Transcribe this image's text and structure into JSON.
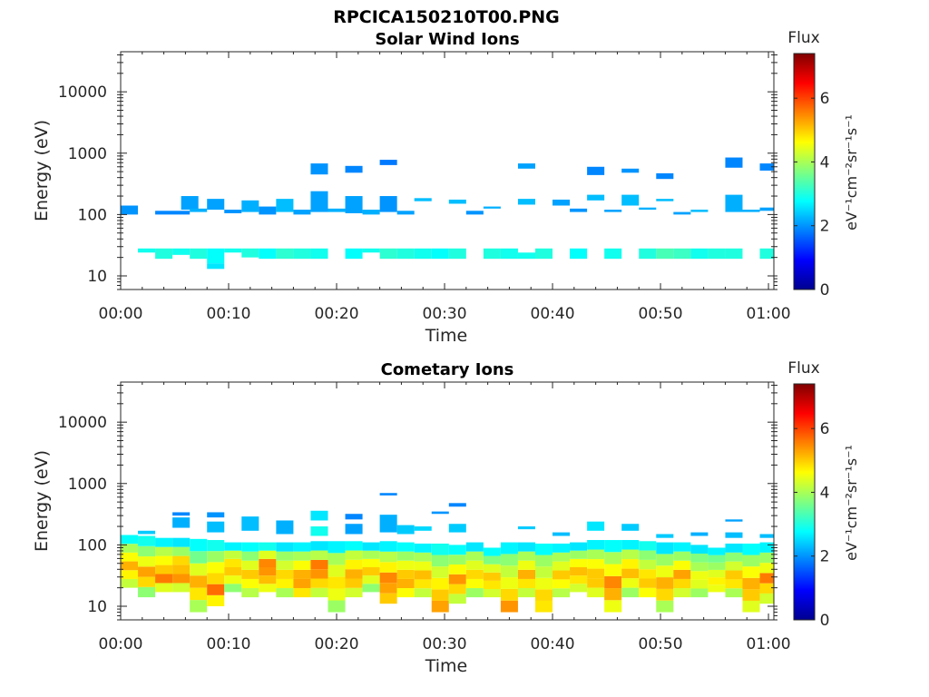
{
  "figure": {
    "title": "RPCICA150210T00.PNG"
  },
  "chart_data": [
    {
      "type": "heatmap",
      "title": "Solar Wind Ions",
      "xlabel": "Time",
      "ylabel": "Energy (eV)",
      "x_tick_labels": [
        "00:00",
        "00:10",
        "00:20",
        "00:30",
        "00:40",
        "00:50",
        "01:00"
      ],
      "y_tick_labels": [
        "10",
        "100",
        "1000",
        "10000"
      ],
      "y_scale": "log",
      "ylim": [
        6,
        45000
      ],
      "xlim_minutes": [
        0,
        60.5
      ],
      "colorbar": {
        "label": "Flux",
        "unit": "eV⁻¹cm⁻²sr⁻¹s⁻¹",
        "ticks": [
          "0",
          "2",
          "4",
          "6"
        ],
        "range": [
          0,
          7.4
        ],
        "colormap": "jet"
      },
      "grid": false,
      "cells": [
        [
          0,
          1.6,
          100,
          140,
          2.0
        ],
        [
          3.2,
          6.4,
          100,
          115,
          1.9
        ],
        [
          5.6,
          7.2,
          120,
          200,
          2.1
        ],
        [
          6.4,
          8,
          110,
          125,
          2.2
        ],
        [
          8,
          9.6,
          120,
          180,
          2.1
        ],
        [
          9.6,
          11.2,
          105,
          120,
          2.0
        ],
        [
          11.2,
          12.8,
          110,
          170,
          2.2
        ],
        [
          12.8,
          14.4,
          100,
          135,
          2.0
        ],
        [
          14.4,
          16,
          110,
          180,
          2.3
        ],
        [
          16,
          17.6,
          100,
          120,
          2.1
        ],
        [
          17.6,
          19.2,
          110,
          240,
          2.1
        ],
        [
          19.2,
          20.8,
          110,
          125,
          2.2
        ],
        [
          20.8,
          22.4,
          105,
          200,
          2.1
        ],
        [
          22.4,
          24,
          100,
          120,
          2.2
        ],
        [
          24,
          25.6,
          110,
          200,
          2.0
        ],
        [
          25.6,
          27.2,
          100,
          115,
          2.1
        ],
        [
          27.2,
          28.8,
          165,
          185,
          2.3
        ],
        [
          30.4,
          32,
          150,
          175,
          2.3
        ],
        [
          32,
          33.6,
          100,
          115,
          2.0
        ],
        [
          33.6,
          35.2,
          125,
          135,
          2.2
        ],
        [
          36.8,
          38.4,
          145,
          180,
          2.3
        ],
        [
          40,
          41.6,
          140,
          175,
          2.1
        ],
        [
          41.6,
          43.2,
          110,
          125,
          2.0
        ],
        [
          43.2,
          44.8,
          170,
          210,
          2.3
        ],
        [
          44.8,
          46.4,
          110,
          120,
          2.1
        ],
        [
          46.4,
          48,
          140,
          210,
          2.3
        ],
        [
          48,
          49.6,
          120,
          130,
          2.2
        ],
        [
          49.6,
          51.2,
          165,
          180,
          2.3
        ],
        [
          51.2,
          52.8,
          100,
          110,
          2.1
        ],
        [
          52.8,
          54.4,
          110,
          120,
          2.3
        ],
        [
          56,
          57.6,
          110,
          210,
          2.2
        ],
        [
          57.6,
          59.2,
          110,
          120,
          2.2
        ],
        [
          59.2,
          60.5,
          115,
          130,
          2.1
        ],
        [
          17.6,
          19.2,
          450,
          680,
          2.0
        ],
        [
          20.8,
          22.4,
          480,
          620,
          1.9
        ],
        [
          24,
          25.6,
          640,
          780,
          1.8
        ],
        [
          36.8,
          38.4,
          560,
          680,
          2.1
        ],
        [
          43.2,
          44.8,
          440,
          600,
          1.9
        ],
        [
          46.4,
          48,
          480,
          560,
          2.0
        ],
        [
          49.6,
          51.2,
          380,
          470,
          1.9
        ],
        [
          56,
          57.6,
          580,
          850,
          1.9
        ],
        [
          59.2,
          60.5,
          520,
          680,
          1.9
        ],
        [
          1.6,
          3.2,
          24,
          28,
          2.9
        ],
        [
          3.2,
          4.8,
          19,
          28,
          3.0
        ],
        [
          4.8,
          6.4,
          22,
          28,
          2.9
        ],
        [
          6.4,
          8,
          19,
          28,
          3.0
        ],
        [
          8,
          9.6,
          16,
          28,
          2.8
        ],
        [
          9.6,
          11.2,
          24,
          28,
          2.9
        ],
        [
          11.2,
          12.8,
          20,
          28,
          3.0
        ],
        [
          12.8,
          14.4,
          19,
          28,
          2.8
        ],
        [
          14.4,
          16,
          19,
          28,
          3.1
        ],
        [
          16,
          17.6,
          19,
          28,
          3.0
        ],
        [
          17.6,
          19.2,
          19,
          28,
          2.9
        ],
        [
          20.8,
          22.4,
          19,
          28,
          2.8
        ],
        [
          22.4,
          24,
          24,
          28,
          2.9
        ],
        [
          24,
          25.6,
          19,
          28,
          3.1
        ],
        [
          25.6,
          27.2,
          19,
          28,
          3.0
        ],
        [
          27.2,
          28.8,
          19,
          28,
          2.9
        ],
        [
          28.8,
          30.4,
          19,
          28,
          2.8
        ],
        [
          30.4,
          32,
          19,
          28,
          3.0
        ],
        [
          33.6,
          35.2,
          19,
          28,
          3.0
        ],
        [
          35.2,
          36.8,
          19,
          28,
          2.9
        ],
        [
          36.8,
          38.4,
          19,
          24,
          2.9
        ],
        [
          38.4,
          40,
          19,
          28,
          3.0
        ],
        [
          41.6,
          43.2,
          19,
          28,
          2.8
        ],
        [
          44.8,
          46.4,
          19,
          28,
          2.9
        ],
        [
          48,
          49.6,
          19,
          28,
          3.0
        ],
        [
          49.6,
          51.2,
          19,
          28,
          3.3
        ],
        [
          51.2,
          52.8,
          19,
          28,
          3.2
        ],
        [
          52.8,
          54.4,
          19,
          28,
          2.9
        ],
        [
          54.4,
          56,
          19,
          28,
          3.0
        ],
        [
          56,
          57.6,
          19,
          28,
          3.0
        ],
        [
          59.2,
          60.5,
          19,
          28,
          3.0
        ],
        [
          8,
          9.6,
          13,
          16,
          2.6
        ]
      ]
    },
    {
      "type": "heatmap",
      "title": "Cometary Ions",
      "xlabel": "Time",
      "ylabel": "Energy (eV)",
      "x_tick_labels": [
        "00:00",
        "00:10",
        "00:20",
        "00:30",
        "00:40",
        "00:50",
        "01:00"
      ],
      "y_tick_labels": [
        "10",
        "100",
        "1000",
        "10000"
      ],
      "y_scale": "log",
      "ylim": [
        6,
        45000
      ],
      "xlim_minutes": [
        0,
        60.5
      ],
      "colorbar": {
        "label": "Flux",
        "unit": "eV⁻¹cm⁻²sr⁻¹s⁻¹",
        "ticks": [
          "0",
          "2",
          "4",
          "6"
        ],
        "range": [
          0,
          7.4
        ],
        "colormap": "jet"
      },
      "grid": false,
      "column_stacks": [
        [
          0,
          1.6,
          20,
          145,
          [
            4.2,
            4.7,
            5.2,
            4.6,
            4.0,
            2.8
          ]
        ],
        [
          1.6,
          3.2,
          14,
          140,
          [
            3.8,
            4.9,
            5.3,
            4.5,
            3.8,
            2.9
          ]
        ],
        [
          3.2,
          4.8,
          17,
          130,
          [
            4.4,
            5.6,
            5.0,
            4.6,
            4.1,
            2.7
          ]
        ],
        [
          4.8,
          6.4,
          17,
          130,
          [
            4.3,
            5.4,
            5.1,
            4.9,
            3.9,
            2.6
          ]
        ],
        [
          6.4,
          8,
          8,
          125,
          [
            4.0,
            4.8,
            5.2,
            4.4,
            3.6,
            2.8
          ]
        ],
        [
          8,
          9.6,
          10,
          120,
          [
            4.7,
            5.7,
            4.9,
            4.6,
            3.9,
            2.9
          ]
        ],
        [
          9.6,
          11.2,
          17,
          110,
          [
            3.8,
            4.5,
            5.0,
            4.8,
            4.2,
            2.7
          ]
        ],
        [
          11.2,
          12.8,
          14,
          110,
          [
            4.1,
            4.6,
            5.0,
            4.4,
            3.8,
            2.8
          ]
        ],
        [
          12.8,
          14.4,
          17,
          110,
          [
            4.5,
            5.1,
            5.4,
            5.5,
            4.4,
            2.9
          ]
        ],
        [
          14.4,
          16,
          14,
          110,
          [
            4.0,
            4.7,
            4.9,
            4.3,
            3.9,
            2.6
          ]
        ],
        [
          16,
          17.6,
          14,
          110,
          [
            4.8,
            5.3,
            5.2,
            4.6,
            4.0,
            2.7
          ]
        ],
        [
          17.6,
          19.2,
          14,
          115,
          [
            4.2,
            4.9,
            5.4,
            5.6,
            4.1,
            2.6
          ]
        ],
        [
          19.2,
          20.8,
          8,
          115,
          [
            3.9,
            4.5,
            4.8,
            4.4,
            4.0,
            2.7
          ]
        ],
        [
          20.8,
          22.4,
          14,
          115,
          [
            4.3,
            5.0,
            5.2,
            4.7,
            4.2,
            2.8
          ]
        ],
        [
          22.4,
          24,
          17,
          110,
          [
            3.8,
            4.4,
            5.0,
            4.6,
            4.0,
            2.6
          ]
        ],
        [
          24,
          25.6,
          11,
          115,
          [
            5.0,
            5.3,
            5.5,
            4.7,
            4.1,
            2.7
          ]
        ],
        [
          25.6,
          27.2,
          14,
          110,
          [
            4.6,
            5.2,
            5.0,
            4.5,
            3.9,
            2.8
          ]
        ],
        [
          27.2,
          28.8,
          14,
          105,
          [
            4.2,
            4.8,
            5.1,
            4.5,
            4.0,
            2.7
          ]
        ],
        [
          28.8,
          30.4,
          8,
          105,
          [
            5.3,
            5.0,
            4.7,
            4.3,
            3.8,
            2.9
          ]
        ],
        [
          30.4,
          32,
          11,
          100,
          [
            4.2,
            4.9,
            5.4,
            4.6,
            3.9,
            2.8
          ]
        ],
        [
          32,
          33.6,
          14,
          110,
          [
            3.9,
            4.6,
            4.9,
            4.4,
            4.0,
            2.6
          ]
        ],
        [
          33.6,
          35.2,
          14,
          90,
          [
            4.3,
            4.8,
            5.0,
            4.4,
            3.7,
            2.8
          ]
        ],
        [
          35.2,
          36.8,
          8,
          110,
          [
            5.4,
            4.9,
            4.5,
            4.2,
            3.8,
            2.7
          ]
        ],
        [
          36.8,
          38.4,
          14,
          110,
          [
            4.2,
            4.8,
            5.2,
            4.5,
            4.0,
            2.6
          ]
        ],
        [
          38.4,
          40,
          8,
          105,
          [
            4.8,
            4.9,
            4.5,
            4.2,
            3.9,
            2.8
          ]
        ],
        [
          40,
          41.6,
          14,
          105,
          [
            4.1,
            4.6,
            5.0,
            4.4,
            4.0,
            2.7
          ]
        ],
        [
          41.6,
          43.2,
          17,
          110,
          [
            4.3,
            4.8,
            5.1,
            4.6,
            3.9,
            2.6
          ]
        ],
        [
          43.2,
          44.8,
          14,
          120,
          [
            4.4,
            5.0,
            5.0,
            4.6,
            4.0,
            2.7
          ]
        ],
        [
          44.8,
          46.4,
          8,
          120,
          [
            4.5,
            5.2,
            5.5,
            4.6,
            4.0,
            2.8
          ]
        ],
        [
          46.4,
          48,
          14,
          120,
          [
            3.9,
            4.5,
            5.1,
            4.7,
            4.1,
            2.7
          ]
        ],
        [
          48,
          49.6,
          14,
          115,
          [
            4.6,
            5.0,
            4.8,
            4.2,
            3.8,
            2.9
          ]
        ],
        [
          49.6,
          51.2,
          8,
          110,
          [
            4.0,
            4.9,
            5.2,
            4.5,
            3.9,
            2.6
          ]
        ],
        [
          51.2,
          52.8,
          14,
          110,
          [
            4.3,
            4.9,
            5.3,
            4.6,
            3.9,
            2.7
          ]
        ],
        [
          52.8,
          54.4,
          14,
          100,
          [
            3.9,
            4.4,
            4.5,
            4.0,
            3.7,
            2.6
          ]
        ],
        [
          54.4,
          56,
          17,
          90,
          [
            4.5,
            4.7,
            4.4,
            3.9,
            3.6,
            2.7
          ]
        ],
        [
          56,
          57.6,
          14,
          105,
          [
            4.0,
            4.8,
            5.0,
            4.3,
            3.8,
            2.6
          ]
        ],
        [
          57.6,
          59.2,
          8,
          105,
          [
            4.4,
            5.0,
            5.2,
            4.6,
            3.9,
            2.8
          ]
        ],
        [
          59.2,
          60.5,
          11,
          110,
          [
            4.3,
            4.9,
            5.6,
            4.5,
            3.9,
            2.7
          ]
        ]
      ],
      "cells": [
        [
          1.6,
          3.2,
          150,
          170,
          2.4
        ],
        [
          4.8,
          6.4,
          190,
          280,
          2.2
        ],
        [
          4.8,
          6.4,
          300,
          340,
          1.9
        ],
        [
          8,
          9.6,
          160,
          240,
          2.3
        ],
        [
          8,
          9.6,
          280,
          340,
          2.0
        ],
        [
          11.2,
          12.8,
          170,
          290,
          2.3
        ],
        [
          14.4,
          16,
          150,
          250,
          2.2
        ],
        [
          17.6,
          19.2,
          140,
          200,
          2.9
        ],
        [
          17.6,
          19.2,
          250,
          360,
          2.6
        ],
        [
          20.8,
          22.4,
          150,
          220,
          2.1
        ],
        [
          20.8,
          22.4,
          260,
          320,
          1.9
        ],
        [
          24,
          25.6,
          160,
          310,
          2.2
        ],
        [
          24,
          25.6,
          640,
          700,
          1.9
        ],
        [
          25.6,
          27.2,
          150,
          210,
          2.4
        ],
        [
          27.2,
          28.8,
          170,
          200,
          2.5
        ],
        [
          28.8,
          30.4,
          320,
          350,
          2.0
        ],
        [
          30.4,
          32,
          160,
          220,
          2.4
        ],
        [
          30.4,
          32,
          420,
          480,
          1.9
        ],
        [
          36.8,
          38.4,
          180,
          200,
          2.4
        ],
        [
          40,
          41.6,
          140,
          160,
          2.3
        ],
        [
          43.2,
          44.8,
          170,
          240,
          2.6
        ],
        [
          46.4,
          48,
          170,
          220,
          2.4
        ],
        [
          49.6,
          51.2,
          130,
          150,
          2.4
        ],
        [
          52.8,
          54.4,
          140,
          160,
          2.2
        ],
        [
          56,
          57.6,
          130,
          160,
          2.3
        ],
        [
          56,
          57.6,
          240,
          260,
          2.1
        ],
        [
          59.2,
          60.5,
          130,
          150,
          2.3
        ]
      ]
    }
  ]
}
